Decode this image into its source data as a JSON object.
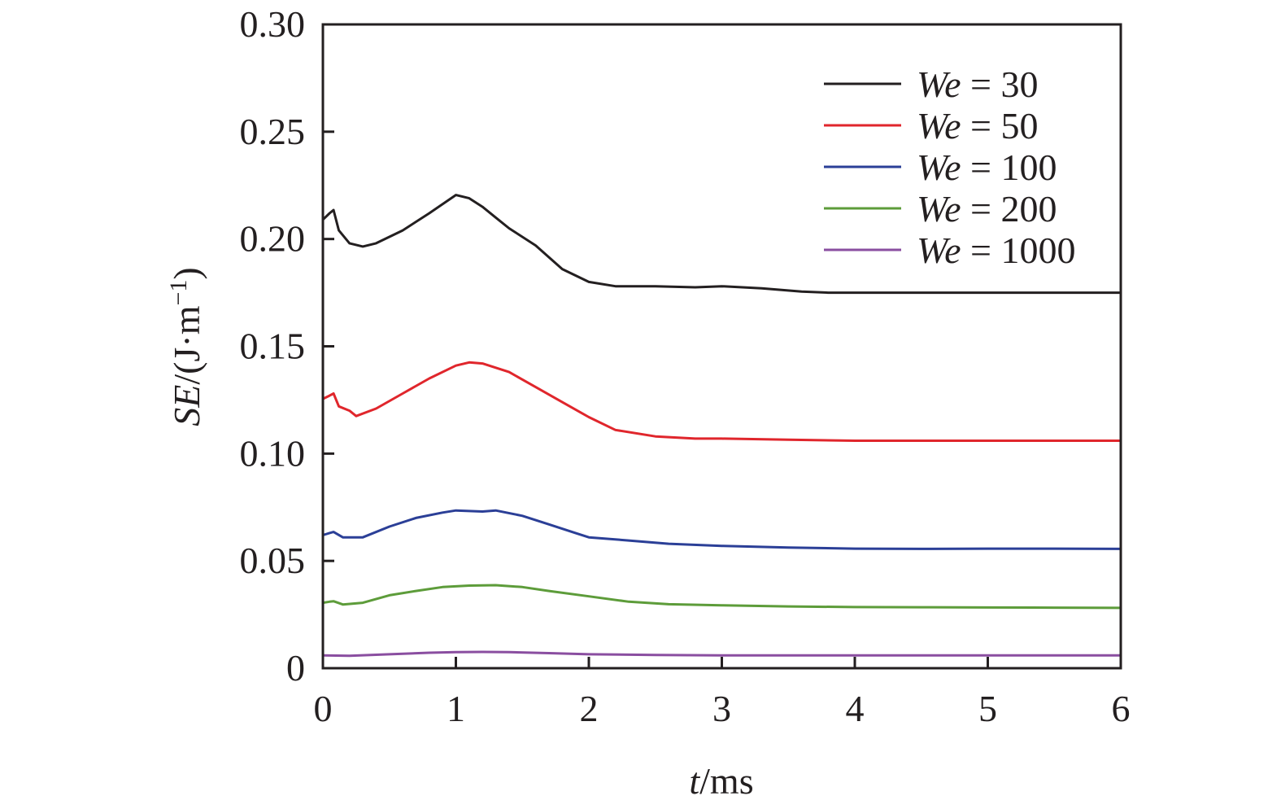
{
  "chart_data": {
    "type": "line",
    "title": "",
    "xlabel": "t/ms",
    "xlabel_parts": {
      "var": "t",
      "unit": "/ms"
    },
    "ylabel": "SE/(J·m⁻¹)",
    "ylabel_parts": {
      "var": "SE",
      "unit": "/(J·m",
      "sup": "−1",
      "close": ")"
    },
    "xlim": [
      0,
      6
    ],
    "ylim": [
      0,
      0.3
    ],
    "xticks": [
      0,
      1,
      2,
      3,
      4,
      5,
      6
    ],
    "xtick_labels": [
      "0",
      "1",
      "2",
      "3",
      "4",
      "5",
      "6"
    ],
    "yticks": [
      0,
      0.05,
      0.1,
      0.15,
      0.2,
      0.25,
      0.3
    ],
    "ytick_labels": [
      "0",
      "0.05",
      "0.10",
      "0.15",
      "0.20",
      "0.25",
      "0.30"
    ],
    "grid": false,
    "legend_position": "upper right",
    "series": [
      {
        "name": "We = 30",
        "label_var": "We",
        "label_value": "= 30",
        "color": "#231f20",
        "x": [
          0,
          0.05,
          0.08,
          0.12,
          0.2,
          0.3,
          0.4,
          0.6,
          0.8,
          1.0,
          1.1,
          1.2,
          1.3,
          1.4,
          1.6,
          1.8,
          2.0,
          2.2,
          2.5,
          2.8,
          3.0,
          3.3,
          3.6,
          3.8,
          4.0,
          4.5,
          5.0,
          5.5,
          6.0
        ],
        "y": [
          0.209,
          0.212,
          0.2135,
          0.204,
          0.198,
          0.1965,
          0.198,
          0.204,
          0.212,
          0.2205,
          0.219,
          0.215,
          0.21,
          0.205,
          0.197,
          0.186,
          0.18,
          0.178,
          0.178,
          0.1775,
          0.178,
          0.177,
          0.1755,
          0.175,
          0.175,
          0.175,
          0.175,
          0.175,
          0.175
        ]
      },
      {
        "name": "We = 50",
        "label_var": "We",
        "label_value": "= 50",
        "color": "#e0262c",
        "x": [
          0,
          0.05,
          0.08,
          0.12,
          0.2,
          0.25,
          0.4,
          0.6,
          0.8,
          1.0,
          1.1,
          1.2,
          1.4,
          1.6,
          1.8,
          2.0,
          2.2,
          2.5,
          2.8,
          3.0,
          3.5,
          4.0,
          4.5,
          5.0,
          5.5,
          6.0
        ],
        "y": [
          0.1255,
          0.127,
          0.128,
          0.122,
          0.12,
          0.1175,
          0.121,
          0.128,
          0.135,
          0.141,
          0.1425,
          0.142,
          0.138,
          0.131,
          0.124,
          0.117,
          0.111,
          0.108,
          0.107,
          0.107,
          0.1065,
          0.106,
          0.106,
          0.106,
          0.106,
          0.106
        ]
      },
      {
        "name": "We = 100",
        "label_var": "We",
        "label_value": "= 100",
        "color": "#2b3f97",
        "x": [
          0,
          0.05,
          0.08,
          0.15,
          0.3,
          0.5,
          0.7,
          0.9,
          1.0,
          1.2,
          1.3,
          1.5,
          1.7,
          1.9,
          2.0,
          2.3,
          2.6,
          3.0,
          3.5,
          4.0,
          4.5,
          5.0,
          5.5,
          6.0
        ],
        "y": [
          0.062,
          0.063,
          0.0635,
          0.061,
          0.061,
          0.066,
          0.07,
          0.0725,
          0.0735,
          0.073,
          0.0735,
          0.071,
          0.067,
          0.063,
          0.061,
          0.0595,
          0.058,
          0.057,
          0.0562,
          0.0557,
          0.0556,
          0.0557,
          0.0557,
          0.0556
        ]
      },
      {
        "name": "We = 200",
        "label_var": "We",
        "label_value": "= 200",
        "color": "#5d9c3a",
        "x": [
          0,
          0.05,
          0.08,
          0.15,
          0.3,
          0.5,
          0.7,
          0.9,
          1.1,
          1.3,
          1.5,
          1.7,
          2.0,
          2.3,
          2.6,
          3.0,
          3.5,
          4.0,
          4.5,
          5.0,
          5.5,
          6.0
        ],
        "y": [
          0.0305,
          0.031,
          0.0312,
          0.0297,
          0.0305,
          0.034,
          0.036,
          0.0378,
          0.0385,
          0.0387,
          0.0378,
          0.036,
          0.0335,
          0.031,
          0.0298,
          0.0293,
          0.0288,
          0.0285,
          0.0284,
          0.0283,
          0.0282,
          0.0281
        ]
      },
      {
        "name": "We = 1000",
        "label_var": "We",
        "label_value": "= 1000",
        "color": "#8a4ea0",
        "x": [
          0,
          0.2,
          0.5,
          0.8,
          1.0,
          1.2,
          1.4,
          1.7,
          2.0,
          2.5,
          3.0,
          4.0,
          5.0,
          6.0
        ],
        "y": [
          0.006,
          0.0058,
          0.0065,
          0.0072,
          0.0075,
          0.0076,
          0.0075,
          0.007,
          0.0065,
          0.0062,
          0.006,
          0.006,
          0.006,
          0.006
        ]
      }
    ]
  }
}
